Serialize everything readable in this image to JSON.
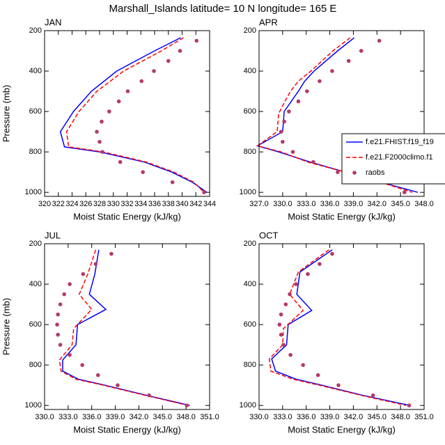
{
  "figure_title": "Marshall_Islands  latitude= 10 N longitude= 165 E",
  "chart_data": [
    {
      "type": "line",
      "title": "JAN",
      "xlabel": "Moist Static Energy (kJ/kg)",
      "ylabel": "Pressure (mb)",
      "xlim": [
        320,
        344
      ],
      "xticks": [
        320,
        322,
        324,
        326,
        328,
        330,
        332,
        334,
        336,
        338,
        340,
        342,
        344
      ],
      "ylim": [
        200,
        1020
      ],
      "yticks": [
        200,
        400,
        600,
        800,
        1000
      ],
      "y_inverted": true,
      "series": [
        {
          "color": "#0000ff",
          "line": "solid",
          "pressure": [
            235,
            300,
            400,
            500,
            600,
            700,
            775,
            800,
            850,
            900,
            950,
            1000
          ],
          "values": [
            339.8,
            336,
            330.5,
            326.8,
            324.2,
            322.3,
            322.9,
            328,
            334.5,
            338.5,
            341.5,
            343.6
          ]
        },
        {
          "color": "#ff0000",
          "line": "dashed",
          "pressure": [
            235,
            300,
            400,
            500,
            600,
            700,
            775,
            800,
            850,
            900,
            950,
            1000
          ],
          "values": [
            340.2,
            337,
            331.5,
            327.6,
            325,
            323.2,
            323.5,
            328.5,
            334.8,
            338.8,
            341.7,
            343.2
          ]
        },
        {
          "color": "#b5396a",
          "line": "none",
          "pressure": [
            250,
            300,
            350,
            400,
            450,
            500,
            550,
            600,
            650,
            700,
            750,
            800,
            850,
            900,
            950,
            1000
          ],
          "values": [
            342.1,
            339.7,
            338,
            335.9,
            334.1,
            332.1,
            330.8,
            329.4,
            328.3,
            327.6,
            328,
            328.4,
            331,
            334.3,
            338.6,
            343.2
          ]
        }
      ]
    },
    {
      "type": "line",
      "title": "APR",
      "xlabel": "Moist Static Energy (kJ/kg)",
      "xlim": [
        327,
        348
      ],
      "xticks": [
        {
          "value": 327,
          "label": "327.0"
        },
        {
          "value": 330,
          "label": "330.0"
        },
        {
          "value": 333,
          "label": "333.0"
        },
        {
          "value": 336,
          "label": "336.0"
        },
        {
          "value": 339,
          "label": "339.0"
        },
        {
          "value": 342,
          "label": "342.0"
        },
        {
          "value": 345,
          "label": "345.0"
        },
        {
          "value": 348,
          "label": "348.0"
        }
      ],
      "ylim": [
        200,
        1020
      ],
      "yticks": [
        200,
        400,
        600,
        800,
        1000
      ],
      "y_inverted": true,
      "legend": "right",
      "series": [
        {
          "name": "f.e21.FHIST.f19_f19",
          "color": "#0000ff",
          "line": "solid",
          "pressure": [
            235,
            300,
            400,
            450,
            500,
            600,
            700,
            770,
            800,
            850,
            900,
            950,
            1000
          ],
          "values": [
            339.1,
            337,
            334,
            332.8,
            332,
            330.2,
            330,
            326.8,
            329.5,
            333.5,
            338,
            342.5,
            347.2
          ]
        },
        {
          "name": "f.e21.F2000climo.f1",
          "color": "#ff0000",
          "line": "dashed",
          "pressure": [
            235,
            300,
            400,
            450,
            500,
            550,
            610,
            700,
            770,
            800,
            850,
            900,
            950,
            1000
          ],
          "values": [
            338.6,
            336.4,
            333.6,
            332,
            331,
            330.3,
            329.5,
            329.3,
            326.8,
            329.8,
            333.2,
            338,
            342.5,
            346.5
          ]
        },
        {
          "name": "raobs",
          "color": "#b5396a",
          "line": "none",
          "pressure": [
            250,
            300,
            350,
            400,
            450,
            500,
            550,
            600,
            650,
            700,
            750,
            800,
            850,
            900,
            950,
            1000
          ],
          "values": [
            342.3,
            340,
            338.4,
            336.3,
            334.7,
            333.1,
            332,
            330.8,
            330.2,
            329.8,
            330,
            331.3,
            333.9,
            337,
            341.2,
            345.5
          ]
        }
      ]
    },
    {
      "type": "line",
      "title": "JUL",
      "xlabel": "Moist Static Energy (kJ/kg)",
      "ylabel": "Pressure (mb)",
      "xlim": [
        330,
        351
      ],
      "xticks": [
        {
          "value": 330,
          "label": "330.0"
        },
        {
          "value": 333,
          "label": "333.0"
        },
        {
          "value": 336,
          "label": "336.0"
        },
        {
          "value": 339,
          "label": "339.0"
        },
        {
          "value": 342,
          "label": "342.0"
        },
        {
          "value": 345,
          "label": "345.0"
        },
        {
          "value": 348,
          "label": "348.0"
        },
        {
          "value": 351,
          "label": "351.0"
        }
      ],
      "ylim": [
        200,
        1020
      ],
      "yticks": [
        200,
        400,
        600,
        800,
        1000
      ],
      "y_inverted": true,
      "series": [
        {
          "color": "#0000ff",
          "line": "solid",
          "pressure": [
            230,
            350,
            450,
            525,
            600,
            700,
            775,
            830,
            870,
            900,
            950,
            1000
          ],
          "values": [
            336.9,
            336.4,
            335.7,
            337.8,
            334.2,
            334,
            332.3,
            332.3,
            334.3,
            337.7,
            343,
            348.5
          ]
        },
        {
          "color": "#ff0000",
          "line": "dashed",
          "pressure": [
            230,
            350,
            450,
            525,
            620,
            700,
            775,
            830,
            870,
            900,
            950,
            1000
          ],
          "values": [
            336.5,
            335.5,
            334.4,
            336,
            333.7,
            333.5,
            331.9,
            332.1,
            334,
            337.5,
            342.8,
            348.3
          ]
        },
        {
          "color": "#b5396a",
          "line": "none",
          "pressure": [
            250,
            300,
            350,
            400,
            450,
            500,
            550,
            600,
            650,
            700,
            750,
            800,
            850,
            900,
            950,
            1000
          ],
          "values": [
            338.5,
            336.5,
            334.9,
            333.2,
            332.5,
            332,
            331.7,
            331.6,
            331.7,
            332,
            333.2,
            334.8,
            336.8,
            339.3,
            343.3,
            348.1
          ]
        }
      ]
    },
    {
      "type": "line",
      "title": "OCT",
      "xlabel": "Moist Static Energy (kJ/kg)",
      "xlim": [
        330,
        351
      ],
      "xticks": [
        {
          "value": 330,
          "label": "330.0"
        },
        {
          "value": 333,
          "label": "333.0"
        },
        {
          "value": 336,
          "label": "336.0"
        },
        {
          "value": 339,
          "label": "339.0"
        },
        {
          "value": 342,
          "label": "342.0"
        },
        {
          "value": 345,
          "label": "345.0"
        },
        {
          "value": 348,
          "label": "348.0"
        },
        {
          "value": 351,
          "label": "351.0"
        }
      ],
      "ylim": [
        200,
        1020
      ],
      "yticks": [
        200,
        400,
        600,
        800,
        1000
      ],
      "y_inverted": true,
      "series": [
        {
          "color": "#0000ff",
          "line": "solid",
          "pressure": [
            230,
            340,
            450,
            530,
            600,
            700,
            770,
            830,
            870,
            900,
            950,
            1000
          ],
          "values": [
            339.3,
            335.2,
            334.8,
            336.7,
            333.7,
            333.5,
            331.6,
            332.1,
            334.7,
            338,
            343.2,
            349.2
          ]
        },
        {
          "color": "#ff0000",
          "line": "dashed",
          "pressure": [
            230,
            340,
            450,
            530,
            620,
            700,
            770,
            830,
            870,
            900,
            950,
            1000
          ],
          "values": [
            338.9,
            335,
            333.9,
            335.6,
            333.1,
            333,
            331.3,
            331.5,
            334.3,
            337.7,
            343,
            348.7
          ]
        },
        {
          "color": "#b5396a",
          "line": "none",
          "pressure": [
            250,
            300,
            350,
            400,
            450,
            500,
            550,
            600,
            650,
            700,
            750,
            800,
            850,
            900,
            950,
            1000
          ],
          "values": [
            339.3,
            337.7,
            336.2,
            334.7,
            333.9,
            333.4,
            332.8,
            332.6,
            332.8,
            333.1,
            334,
            335.6,
            337.5,
            340.1,
            344.5,
            349.1
          ]
        }
      ]
    }
  ]
}
